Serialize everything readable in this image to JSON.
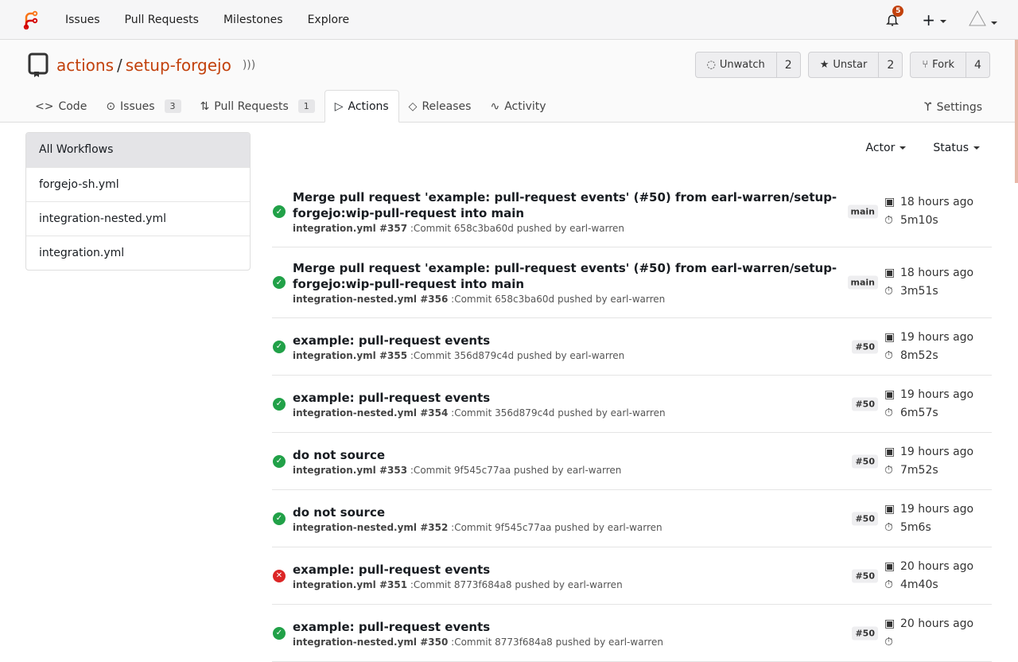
{
  "nav": {
    "items": [
      "Issues",
      "Pull Requests",
      "Milestones",
      "Explore"
    ],
    "notifications": "5"
  },
  "repo": {
    "owner": "actions",
    "name": "setup-forgejo",
    "buttons": [
      {
        "label": "Unwatch",
        "count": "2",
        "icon": "eye-slash-icon"
      },
      {
        "label": "Unstar",
        "count": "2",
        "icon": "star-icon"
      },
      {
        "label": "Fork",
        "count": "4",
        "icon": "fork-icon"
      }
    ],
    "tabs": [
      {
        "label": "Code",
        "count": ""
      },
      {
        "label": "Issues",
        "count": "3"
      },
      {
        "label": "Pull Requests",
        "count": "1"
      },
      {
        "label": "Actions",
        "count": ""
      },
      {
        "label": "Releases",
        "count": ""
      },
      {
        "label": "Activity",
        "count": ""
      }
    ],
    "settings": "Settings"
  },
  "sidebar": [
    "All Workflows",
    "forgejo-sh.yml",
    "integration-nested.yml",
    "integration.yml"
  ],
  "filters": {
    "actor": "Actor",
    "status": "Status"
  },
  "runs": [
    {
      "title": "Merge pull request 'example: pull-request events' (#50) from earl-warren/setup-forgejo:wip-pull-request into main",
      "workflow": "integration.yml #357",
      "commit": ":Commit 658c3ba60d pushed by earl-warren",
      "ref": "main",
      "time": "18 hours ago",
      "duration": "5m10s",
      "status": "success"
    },
    {
      "title": "Merge pull request 'example: pull-request events' (#50) from earl-warren/setup-forgejo:wip-pull-request into main",
      "workflow": "integration-nested.yml #356",
      "commit": ":Commit 658c3ba60d pushed by earl-warren",
      "ref": "main",
      "time": "18 hours ago",
      "duration": "3m51s",
      "status": "success"
    },
    {
      "title": "example: pull-request events",
      "workflow": "integration.yml #355",
      "commit": ":Commit 356d879c4d pushed by earl-warren",
      "ref": "#50",
      "time": "19 hours ago",
      "duration": "8m52s",
      "status": "success"
    },
    {
      "title": "example: pull-request events",
      "workflow": "integration-nested.yml #354",
      "commit": ":Commit 356d879c4d pushed by earl-warren",
      "ref": "#50",
      "time": "19 hours ago",
      "duration": "6m57s",
      "status": "success"
    },
    {
      "title": "do not source",
      "workflow": "integration.yml #353",
      "commit": ":Commit 9f545c77aa pushed by earl-warren",
      "ref": "#50",
      "time": "19 hours ago",
      "duration": "7m52s",
      "status": "success"
    },
    {
      "title": "do not source",
      "workflow": "integration-nested.yml #352",
      "commit": ":Commit 9f545c77aa pushed by earl-warren",
      "ref": "#50",
      "time": "19 hours ago",
      "duration": "5m6s",
      "status": "success"
    },
    {
      "title": "example: pull-request events",
      "workflow": "integration.yml #351",
      "commit": ":Commit 8773f684a8 pushed by earl-warren",
      "ref": "#50",
      "time": "20 hours ago",
      "duration": "4m40s",
      "status": "failure"
    },
    {
      "title": "example: pull-request events",
      "workflow": "integration-nested.yml #350",
      "commit": ":Commit 8773f684a8 pushed by earl-warren",
      "ref": "#50",
      "time": "20 hours ago",
      "duration": "",
      "status": "success"
    }
  ],
  "colors": {
    "accent": "#c2410c",
    "success": "#21a148",
    "failure": "#dc2626"
  }
}
